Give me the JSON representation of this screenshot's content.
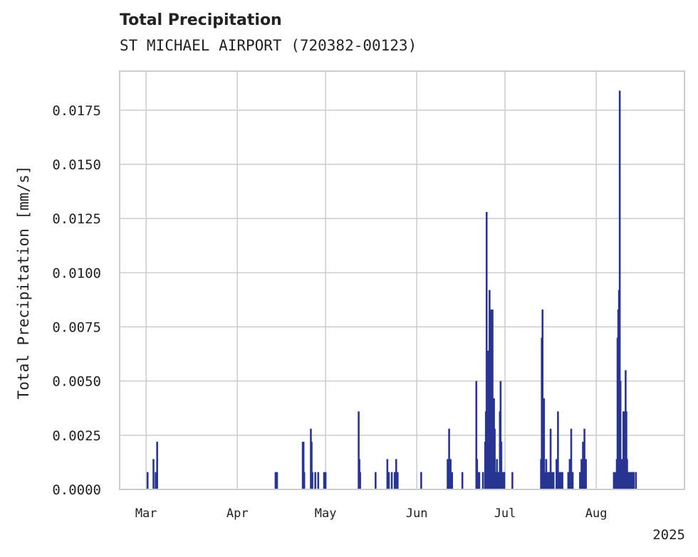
{
  "chart_data": {
    "type": "bar",
    "title": "Total Precipitation",
    "subtitle": "ST MICHAEL AIRPORT (720382-00123)",
    "ylabel": "Total Precipitation [mm/s]",
    "xlabel": "",
    "year_label": "2025",
    "xlim": [
      "2025-02-20",
      "2025-08-31"
    ],
    "ylim": [
      0,
      0.0193
    ],
    "grid": true,
    "legend": "none",
    "bar_color": "#283593",
    "x_ticks": [
      {
        "date": "2025-03-01",
        "label": "Mar"
      },
      {
        "date": "2025-04-01",
        "label": "Apr"
      },
      {
        "date": "2025-05-01",
        "label": "May"
      },
      {
        "date": "2025-06-01",
        "label": "Jun"
      },
      {
        "date": "2025-07-01",
        "label": "Jul"
      },
      {
        "date": "2025-08-01",
        "label": "Aug"
      }
    ],
    "y_ticks": [
      {
        "value": 0,
        "label": "0.0000"
      },
      {
        "value": 0.0025,
        "label": "0.0025"
      },
      {
        "value": 0.005,
        "label": "0.0050"
      },
      {
        "value": 0.0075,
        "label": "0.0075"
      },
      {
        "value": 0.01,
        "label": "0.0100"
      },
      {
        "value": 0.0125,
        "label": "0.0125"
      },
      {
        "value": 0.015,
        "label": "0.0150"
      },
      {
        "value": 0.0175,
        "label": "0.0175"
      }
    ],
    "x": [
      "2025-03-01T12:00",
      "2025-03-03T12:00",
      "2025-03-04T06:00",
      "2025-03-04T18:00",
      "2025-04-14T00:00",
      "2025-04-14T12:00",
      "2025-04-23T06:00",
      "2025-04-23T12:00",
      "2025-04-23T18:00",
      "2025-04-26T00:00",
      "2025-04-26T06:00",
      "2025-04-26T12:00",
      "2025-04-27T12:00",
      "2025-04-28T12:00",
      "2025-04-30T12:00",
      "2025-04-31T00:00",
      "2025-05-12T06:00",
      "2025-05-12T12:00",
      "2025-05-12T18:00",
      "2025-05-18T00:00",
      "2025-05-22T00:00",
      "2025-05-22T12:00",
      "2025-05-23T12:00",
      "2025-05-24T12:00",
      "2025-05-25T00:00",
      "2025-05-25T12:00",
      "2025-06-02T12:00",
      "2025-06-11T12:00",
      "2025-06-12T00:00",
      "2025-06-12T12:00",
      "2025-06-13T00:00",
      "2025-06-16T12:00",
      "2025-06-21T06:00",
      "2025-06-21T12:00",
      "2025-06-21T18:00",
      "2025-06-22T06:00",
      "2025-06-23T12:00",
      "2025-06-24T06:00",
      "2025-06-24T12:00",
      "2025-06-24T18:00",
      "2025-06-25T06:00",
      "2025-06-25T12:00",
      "2025-06-25T18:00",
      "2025-06-26T06:00",
      "2025-06-26T12:00",
      "2025-06-26T18:00",
      "2025-06-27T06:00",
      "2025-06-27T12:00",
      "2025-06-27T18:00",
      "2025-06-28T06:00",
      "2025-06-28T12:00",
      "2025-06-28T18:00",
      "2025-06-29T06:00",
      "2025-06-29T12:00",
      "2025-06-29T18:00",
      "2025-06-30T06:00",
      "2025-06-30T12:00",
      "2025-06-30T18:00",
      "2025-07-03T12:00",
      "2025-07-13T06:00",
      "2025-07-13T12:00",
      "2025-07-13T18:00",
      "2025-07-14T00:00",
      "2025-07-14T06:00",
      "2025-07-14T12:00",
      "2025-07-15T00:00",
      "2025-07-15T12:00",
      "2025-07-16T00:00",
      "2025-07-16T12:00",
      "2025-07-17T00:00",
      "2025-07-17T12:00",
      "2025-07-18T12:00",
      "2025-07-19T00:00",
      "2025-07-19T12:00",
      "2025-07-20T00:00",
      "2025-07-20T12:00",
      "2025-07-22T12:00",
      "2025-07-23T00:00",
      "2025-07-23T12:00",
      "2025-07-24T00:00",
      "2025-07-26T12:00",
      "2025-07-27T00:00",
      "2025-07-27T12:00",
      "2025-07-28T00:00",
      "2025-07-28T12:00",
      "2025-08-07T00:00",
      "2025-08-07T12:00",
      "2025-08-08T00:00",
      "2025-08-08T06:00",
      "2025-08-08T12:00",
      "2025-08-08T18:00",
      "2025-08-09T00:00",
      "2025-08-09T06:00",
      "2025-08-09T12:00",
      "2025-08-09T18:00",
      "2025-08-10T06:00",
      "2025-08-10T12:00",
      "2025-08-10T18:00",
      "2025-08-11T00:00",
      "2025-08-11T06:00",
      "2025-08-11T12:00",
      "2025-08-11T18:00",
      "2025-08-12T00:00",
      "2025-08-12T06:00",
      "2025-08-12T12:00",
      "2025-08-13T00:00",
      "2025-08-13T06:00",
      "2025-08-13T12:00",
      "2025-08-13T18:00",
      "2025-08-14T12:00"
    ],
    "values": [
      0.0008,
      0.0014,
      0.0008,
      0.0022,
      0.0008,
      0.0008,
      0.0022,
      0.0022,
      0.0008,
      0.0028,
      0.0022,
      0.0008,
      0.0008,
      0.0008,
      0.0008,
      0.0008,
      0.0036,
      0.0014,
      0.0008,
      0.0008,
      0.0014,
      0.0008,
      0.0008,
      0.0008,
      0.0014,
      0.0008,
      0.0008,
      0.0014,
      0.0028,
      0.0014,
      0.0008,
      0.0008,
      0.005,
      0.0014,
      0.0008,
      0.0008,
      0.0008,
      0.0022,
      0.0036,
      0.0128,
      0.0064,
      0.0036,
      0.0092,
      0.0083,
      0.0064,
      0.0083,
      0.0042,
      0.0028,
      0.0008,
      0.0014,
      0.0008,
      0.0008,
      0.0036,
      0.005,
      0.0022,
      0.0008,
      0.0008,
      0.0008,
      0.0008,
      0.0014,
      0.007,
      0.0083,
      0.0014,
      0.0042,
      0.0008,
      0.0014,
      0.0008,
      0.0008,
      0.0028,
      0.0008,
      0.0008,
      0.0014,
      0.0036,
      0.0008,
      0.0008,
      0.0008,
      0.0008,
      0.0014,
      0.0028,
      0.0008,
      0.0008,
      0.0014,
      0.0022,
      0.0028,
      0.0014,
      0.0008,
      0.0008,
      0.0014,
      0.007,
      0.0083,
      0.0092,
      0.0184,
      0.005,
      0.0008,
      0.0014,
      0.0036,
      0.0036,
      0.0014,
      0.0055,
      0.0036,
      0.0014,
      0.0008,
      0.0008,
      0.0008,
      0.0008,
      0.0008,
      0.0008,
      0.0008,
      0.0008,
      0.0008
    ]
  }
}
